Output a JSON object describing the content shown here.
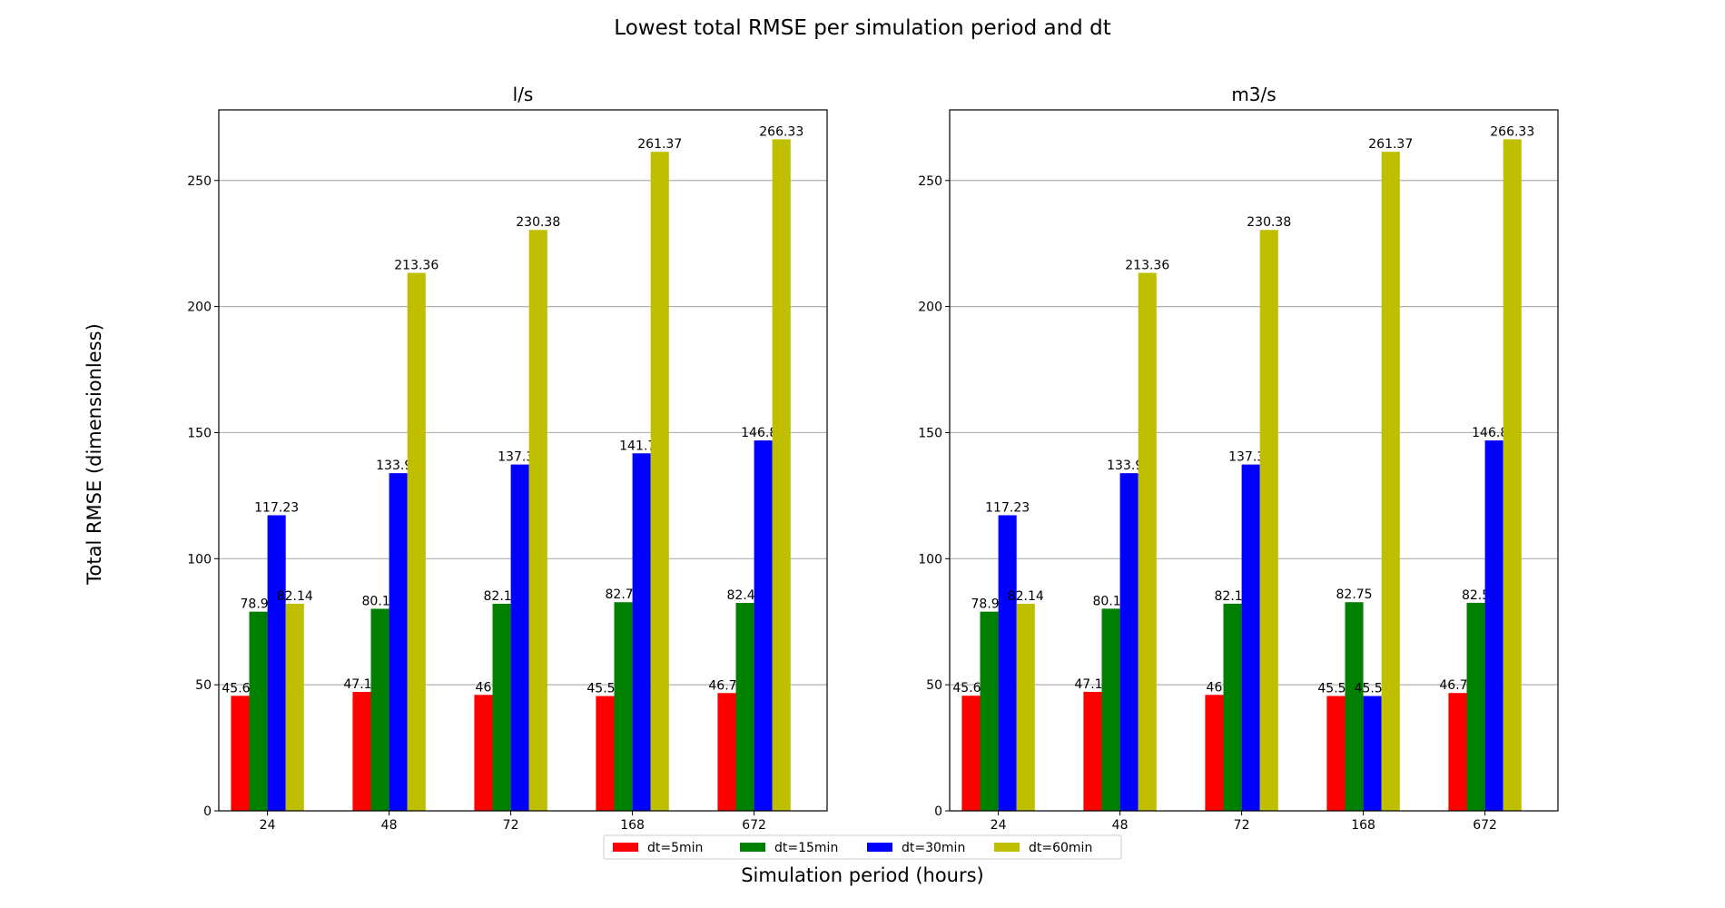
{
  "chart_data": {
    "type": "bar",
    "title": "Lowest total RMSE per simulation period and dt",
    "xlabel": "Simulation period (hours)",
    "ylabel": "Total RMSE (dimensionless)",
    "categories": [
      "24",
      "48",
      "72",
      "168",
      "672"
    ],
    "ylim": [
      0,
      278
    ],
    "yticks": [
      0,
      50,
      100,
      150,
      200,
      250
    ],
    "grid": "y",
    "legend": "bottom-center",
    "panels": [
      {
        "title": "l/s",
        "series": [
          {
            "name": "dt=5min",
            "color": "#ff0000",
            "values": [
              45.62,
              47.16,
              46.0,
              45.52,
              46.71
            ]
          },
          {
            "name": "dt=15min",
            "color": "#008000",
            "values": [
              78.99,
              80.14,
              82.13,
              82.74,
              82.46
            ]
          },
          {
            "name": "dt=30min",
            "color": "#0000ff",
            "values": [
              117.23,
              133.91,
              137.35,
              141.79,
              146.89
            ]
          },
          {
            "name": "dt=60min",
            "color": "#bfbf00",
            "values": [
              82.14,
              213.36,
              230.38,
              261.37,
              266.33
            ]
          }
        ]
      },
      {
        "title": "m3/s",
        "series": [
          {
            "name": "dt=5min",
            "color": "#ff0000",
            "values": [
              45.65,
              47.18,
              46.0,
              45.54,
              46.73
            ]
          },
          {
            "name": "dt=15min",
            "color": "#008000",
            "values": [
              78.99,
              80.17,
              82.15,
              82.75,
              82.5
            ]
          },
          {
            "name": "dt=30min",
            "color": "#0000ff",
            "values": [
              117.23,
              133.91,
              137.35,
              45.54,
              146.89
            ]
          },
          {
            "name": "dt=60min",
            "color": "#bfbf00",
            "values": [
              82.14,
              213.36,
              230.38,
              261.37,
              266.33
            ]
          }
        ]
      }
    ]
  }
}
